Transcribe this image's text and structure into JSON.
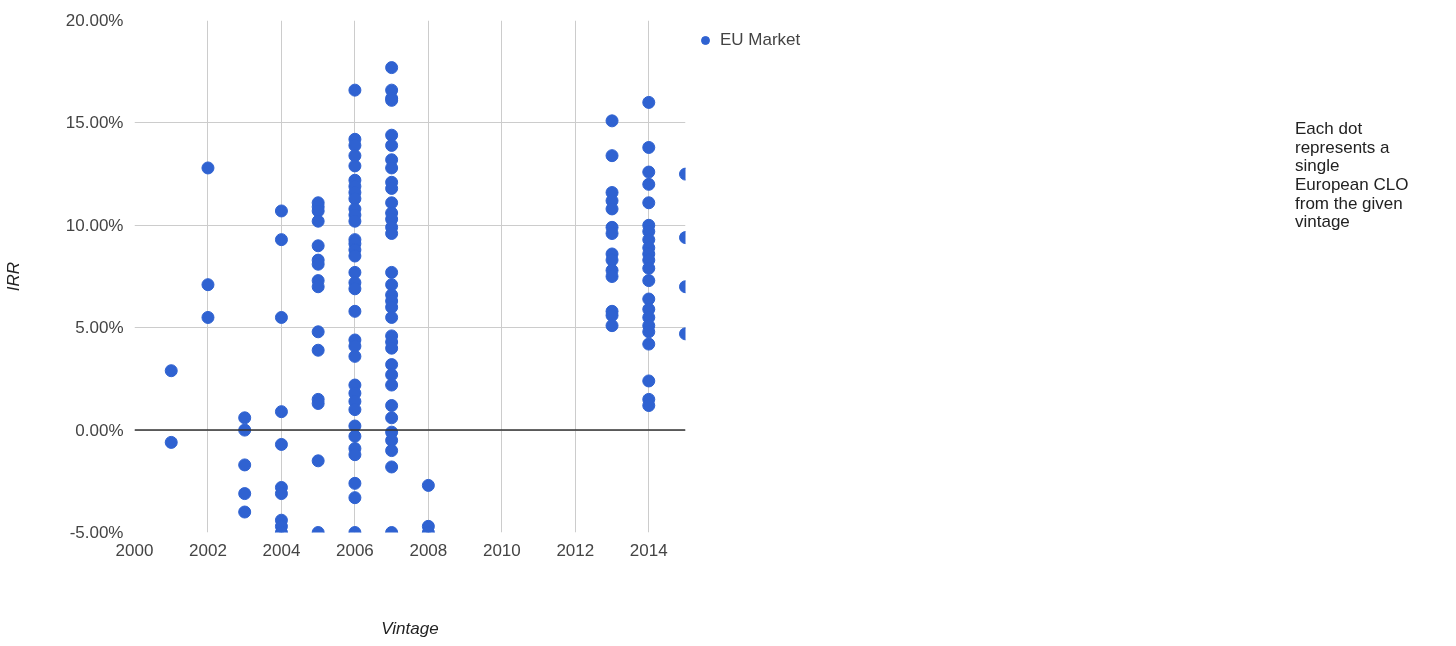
{
  "chart_data": {
    "type": "scatter",
    "xlabel": "Vintage",
    "ylabel": "IRR",
    "legend": "right",
    "grid": true,
    "marker": "circle",
    "xlim": [
      2000,
      2015
    ],
    "xticks": [
      2000,
      2002,
      2004,
      2006,
      2008,
      2010,
      2012,
      2014
    ],
    "ylim": [
      -5,
      20
    ],
    "yticks": [
      {
        "value": -5,
        "label": "-5.00%"
      },
      {
        "value": 0,
        "label": "0.00%"
      },
      {
        "value": 5,
        "label": "5.00%"
      },
      {
        "value": 10,
        "label": "10.00%"
      },
      {
        "value": 15,
        "label": "15.00%"
      },
      {
        "value": 20,
        "label": "20.00%"
      }
    ],
    "ref_lines": [
      {
        "axis": "y",
        "value": 0,
        "color": "#333333"
      }
    ],
    "annotations": [
      "Each dot represents a single European CLO from the given vintage"
    ],
    "series": [
      {
        "name": "EU Market",
        "color": "#2f62d1",
        "x": [
          2001,
          2001,
          2002,
          2002,
          2002,
          2003,
          2003,
          2003,
          2003,
          2003,
          2004,
          2004,
          2004,
          2004,
          2004,
          2004,
          2004,
          2004,
          2004,
          2004,
          2005,
          2005,
          2005,
          2005,
          2005,
          2005,
          2005,
          2005,
          2005,
          2005,
          2005,
          2005,
          2005,
          2005,
          2005,
          2006,
          2006,
          2006,
          2006,
          2006,
          2006,
          2006,
          2006,
          2006,
          2006,
          2006,
          2006,
          2006,
          2006,
          2006,
          2006,
          2006,
          2006,
          2006,
          2006,
          2006,
          2006,
          2006,
          2006,
          2006,
          2006,
          2006,
          2006,
          2006,
          2006,
          2006,
          2006,
          2006,
          2006,
          2007,
          2007,
          2007,
          2007,
          2007,
          2007,
          2007,
          2007,
          2007,
          2007,
          2007,
          2007,
          2007,
          2007,
          2007,
          2007,
          2007,
          2007,
          2007,
          2007,
          2007,
          2007,
          2007,
          2007,
          2007,
          2007,
          2007,
          2007,
          2007,
          2007,
          2007,
          2007,
          2007,
          2007,
          2008,
          2008,
          2008,
          2013,
          2013,
          2013,
          2013,
          2013,
          2013,
          2013,
          2013,
          2013,
          2013,
          2013,
          2013,
          2013,
          2013,
          2014,
          2014,
          2014,
          2014,
          2014,
          2014,
          2014,
          2014,
          2014,
          2014,
          2014,
          2014,
          2014,
          2014,
          2014,
          2014,
          2014,
          2014,
          2014,
          2014,
          2014,
          2014,
          2015,
          2015,
          2015,
          2015
        ],
        "values": [
          2.9,
          -0.6,
          12.8,
          7.1,
          5.5,
          0.6,
          0.0,
          -1.7,
          -3.1,
          -4.0,
          10.7,
          9.3,
          5.5,
          0.9,
          -0.7,
          -2.8,
          -3.1,
          -4.4,
          -4.7,
          -5.0,
          11.1,
          10.9,
          10.7,
          10.2,
          9.0,
          8.3,
          8.1,
          7.3,
          7.0,
          4.8,
          3.9,
          1.5,
          1.3,
          -1.5,
          -5.0,
          16.6,
          14.2,
          13.9,
          13.4,
          12.9,
          12.2,
          11.9,
          11.6,
          11.3,
          10.8,
          10.5,
          10.2,
          9.3,
          9.1,
          8.8,
          8.5,
          7.7,
          7.2,
          6.9,
          5.8,
          4.4,
          4.1,
          3.6,
          2.2,
          1.8,
          1.4,
          1.0,
          0.2,
          -0.3,
          -0.9,
          -1.2,
          -2.6,
          -3.3,
          -5.0,
          17.7,
          16.6,
          16.2,
          16.1,
          14.4,
          13.9,
          13.2,
          12.8,
          12.1,
          11.8,
          11.1,
          10.6,
          10.3,
          9.9,
          9.6,
          7.7,
          7.1,
          6.6,
          6.3,
          6.0,
          5.5,
          4.6,
          4.3,
          4.0,
          3.2,
          2.7,
          2.2,
          1.2,
          0.6,
          -0.1,
          -0.5,
          -1.0,
          -1.8,
          -5.0,
          -2.7,
          -4.7,
          -5.0,
          15.1,
          13.4,
          11.6,
          11.2,
          10.8,
          9.9,
          9.6,
          8.6,
          8.3,
          7.8,
          7.5,
          5.8,
          5.6,
          5.1,
          16.0,
          13.8,
          12.6,
          12.0,
          11.1,
          10.0,
          9.7,
          9.3,
          8.9,
          8.6,
          8.3,
          7.9,
          7.3,
          6.4,
          5.9,
          5.5,
          5.1,
          4.8,
          4.2,
          2.4,
          1.5,
          1.2,
          12.5,
          9.4,
          7.0,
          4.7
        ]
      }
    ]
  }
}
